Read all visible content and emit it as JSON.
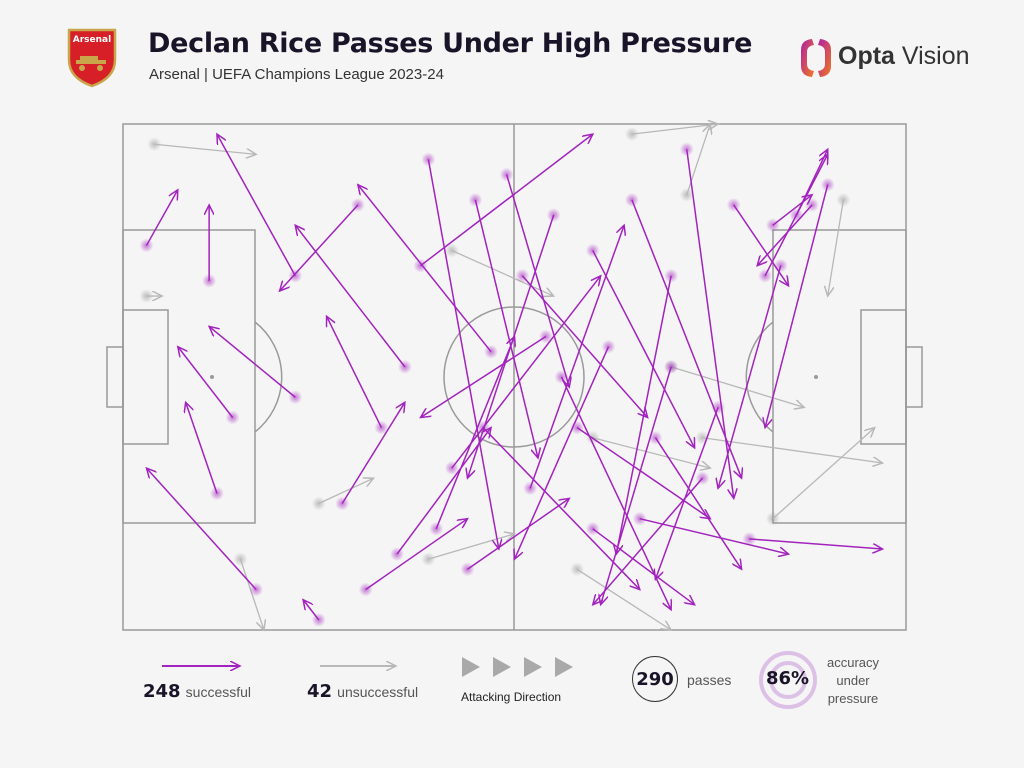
{
  "header": {
    "title": "Declan Rice Passes Under High Pressure",
    "subtitle": "Arsenal | UEFA Champions League 2023-24",
    "crest_text": "Arsenal",
    "brand_strong": "Opta",
    "brand_light": "Vision"
  },
  "legend": {
    "successful_count": "248",
    "successful_label": "successful",
    "unsuccessful_count": "42",
    "unsuccessful_label": "unsuccessful",
    "direction_label": "Attacking Direction",
    "passes_count": "290",
    "passes_label": "passes",
    "accuracy": "86%",
    "accuracy_label_1": "accuracy",
    "accuracy_label_2": "under",
    "accuracy_label_3": "pressure"
  },
  "colors": {
    "successful": "#a223bd",
    "unsuccessful": "#b8b8b8",
    "pitch_lines": "#9a9a9a",
    "accuracy_ring": "#dcc0e6"
  },
  "chart_data": {
    "type": "scatter",
    "subtype": "pass-map",
    "x_range": [
      0,
      100
    ],
    "y_range": [
      0,
      100
    ],
    "attacking_direction": "left-to-right",
    "note_sample": "representative subset of plotted passes (start x,y -> end x,y, pitch percent)",
    "successful": [
      [
        3,
        24,
        7,
        13
      ],
      [
        17,
        92,
        3,
        68
      ],
      [
        11,
        31,
        11,
        16
      ],
      [
        22,
        30,
        12,
        2
      ],
      [
        14,
        58,
        7,
        44
      ],
      [
        22,
        54,
        11,
        40
      ],
      [
        12,
        73,
        8,
        55
      ],
      [
        25,
        98,
        23,
        94
      ],
      [
        39,
        7,
        48,
        84
      ],
      [
        30,
        16,
        20,
        33
      ],
      [
        45,
        15,
        53,
        66
      ],
      [
        38,
        28,
        60,
        2
      ],
      [
        49,
        10,
        57,
        52
      ],
      [
        55,
        18,
        44,
        70
      ],
      [
        42,
        68,
        61,
        30
      ],
      [
        52,
        72,
        64,
        20
      ],
      [
        60,
        25,
        73,
        64
      ],
      [
        65,
        15,
        79,
        70
      ],
      [
        70,
        30,
        63,
        85
      ],
      [
        72,
        5,
        78,
        74
      ],
      [
        78,
        16,
        85,
        32
      ],
      [
        86,
        18,
        90,
        5
      ],
      [
        88,
        16,
        81,
        28
      ],
      [
        83,
        20,
        88,
        14
      ],
      [
        82,
        30,
        90,
        6
      ],
      [
        58,
        60,
        75,
        78
      ],
      [
        60,
        80,
        73,
        95
      ],
      [
        66,
        78,
        85,
        85
      ],
      [
        80,
        82,
        97,
        84
      ],
      [
        74,
        70,
        60,
        95
      ],
      [
        54,
        42,
        38,
        58
      ],
      [
        47,
        45,
        30,
        12
      ],
      [
        36,
        48,
        22,
        20
      ],
      [
        33,
        60,
        26,
        38
      ],
      [
        28,
        75,
        36,
        55
      ],
      [
        40,
        80,
        50,
        42
      ],
      [
        62,
        44,
        50,
        86
      ],
      [
        70,
        48,
        61,
        95
      ],
      [
        76,
        56,
        68,
        90
      ],
      [
        84,
        28,
        76,
        72
      ],
      [
        90,
        12,
        82,
        60
      ],
      [
        51,
        30,
        67,
        58
      ],
      [
        44,
        88,
        57,
        74
      ],
      [
        35,
        85,
        47,
        60
      ],
      [
        68,
        62,
        79,
        88
      ],
      [
        56,
        50,
        70,
        96
      ],
      [
        46,
        60,
        66,
        92
      ],
      [
        31,
        92,
        44,
        78
      ]
    ],
    "unsuccessful": [
      [
        4,
        4,
        17,
        6
      ],
      [
        3,
        34,
        5,
        34
      ],
      [
        92,
        15,
        90,
        34
      ],
      [
        15,
        86,
        18,
        100
      ],
      [
        39,
        86,
        50,
        81
      ],
      [
        72,
        14,
        75,
        0
      ],
      [
        65,
        2,
        76,
        0
      ],
      [
        70,
        48,
        87,
        56
      ],
      [
        74,
        62,
        97,
        67
      ],
      [
        83,
        78,
        96,
        60
      ],
      [
        58,
        88,
        70,
        100
      ],
      [
        25,
        75,
        32,
        70
      ],
      [
        42,
        25,
        55,
        34
      ],
      [
        60,
        62,
        75,
        68
      ]
    ]
  }
}
